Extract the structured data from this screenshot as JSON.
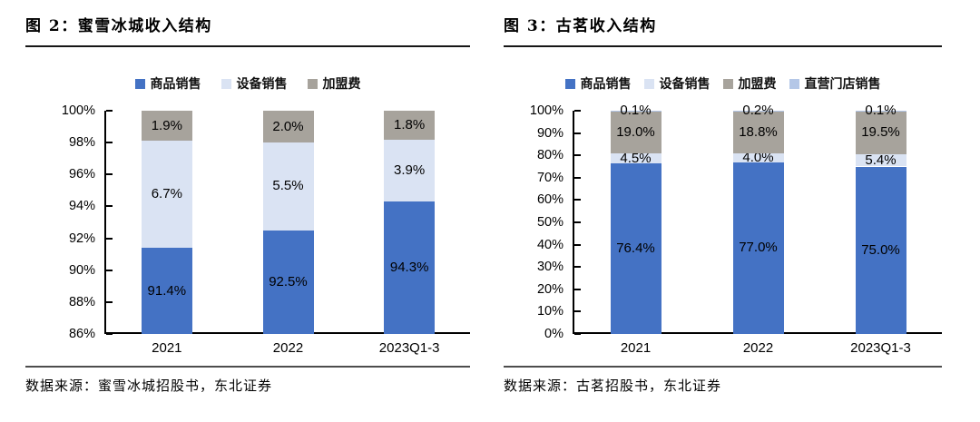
{
  "page": {
    "background": "#ffffff",
    "text_color": "#000000",
    "title_rule_color": "#161616",
    "source_rule_color": "#4d4d4d"
  },
  "chart_data": [
    {
      "type": "stacked_bar",
      "title": "图 2：蜜雪冰城收入结构",
      "source": "数据来源：蜜雪冰城招股书，东北证券",
      "categories": [
        "2021",
        "2022",
        "2023Q1-3"
      ],
      "series": [
        {
          "name": "商品销售",
          "color": "#4472C4",
          "values": [
            91.4,
            92.5,
            94.3
          ]
        },
        {
          "name": "设备销售",
          "color": "#DAE3F3",
          "values": [
            6.7,
            5.5,
            3.9
          ]
        },
        {
          "name": "加盟费",
          "color": "#A7A39C",
          "values": [
            1.9,
            2.0,
            1.8
          ]
        }
      ],
      "ylim": [
        86,
        100
      ],
      "ytick_step": 2,
      "ytick_suffix": "%",
      "value_label_suffix": "%",
      "legend_position": "top",
      "grid": false
    },
    {
      "type": "stacked_bar",
      "title": "图 3：古茗收入结构",
      "source": "数据来源：古茗招股书，东北证券",
      "categories": [
        "2021",
        "2022",
        "2023Q1-3"
      ],
      "series": [
        {
          "name": "商品销售",
          "color": "#4472C4",
          "values": [
            76.4,
            77.0,
            75.0
          ]
        },
        {
          "name": "设备销售",
          "color": "#DAE3F3",
          "values": [
            4.5,
            4.0,
            5.4
          ]
        },
        {
          "name": "加盟费",
          "color": "#A7A39C",
          "values": [
            19.0,
            18.8,
            19.5
          ]
        },
        {
          "name": "直营门店销售",
          "color": "#B4C7E7",
          "values": [
            0.1,
            0.2,
            0.1
          ]
        }
      ],
      "ylim": [
        0,
        100
      ],
      "ytick_step": 10,
      "ytick_suffix": "%",
      "value_label_suffix": "%",
      "legend_position": "top",
      "grid": false
    }
  ]
}
